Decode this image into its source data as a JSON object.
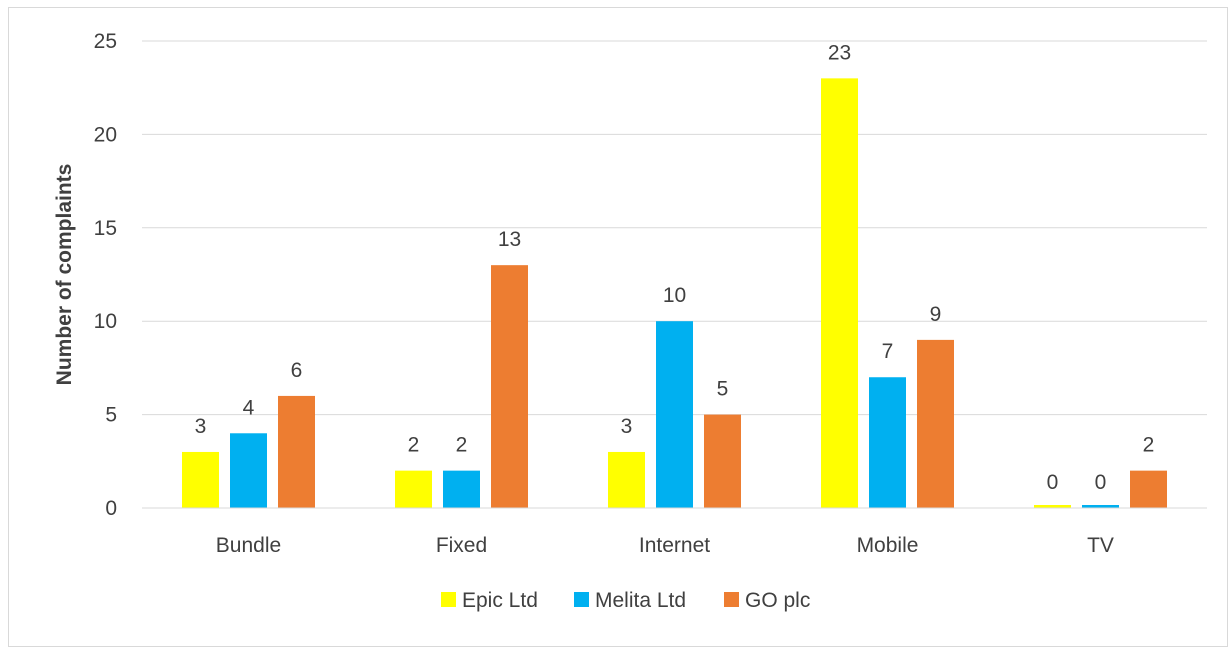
{
  "chart_data": {
    "type": "bar",
    "title": "",
    "xlabel": "",
    "ylabel": "Number of complaints",
    "ylim": [
      0,
      25
    ],
    "yticks": [
      0,
      5,
      10,
      15,
      20,
      25
    ],
    "grid": true,
    "legend_position": "bottom",
    "categories": [
      "Bundle",
      "Fixed",
      "Internet",
      "Mobile",
      "TV"
    ],
    "series": [
      {
        "name": "Epic Ltd",
        "color": "#FFFF00",
        "values": [
          3,
          2,
          3,
          23,
          0
        ]
      },
      {
        "name": "Melita Ltd",
        "color": "#00B0F0",
        "values": [
          4,
          2,
          10,
          7,
          0
        ]
      },
      {
        "name": "GO plc",
        "color": "#ED7D31",
        "values": [
          6,
          13,
          5,
          9,
          2
        ]
      }
    ]
  }
}
